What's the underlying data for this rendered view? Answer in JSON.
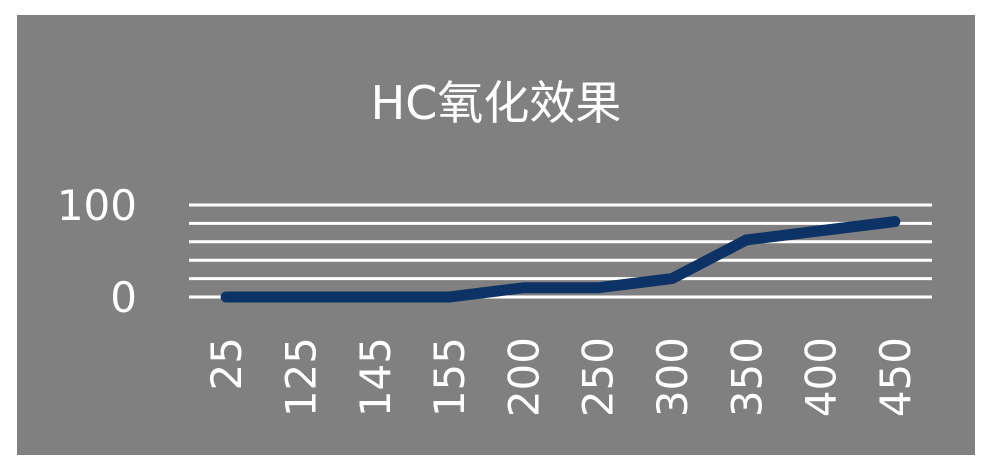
{
  "chart_data": {
    "type": "line",
    "title": "HC氧化效果",
    "categories": [
      "25",
      "125",
      "145",
      "155",
      "200",
      "250",
      "300",
      "350",
      "400",
      "450"
    ],
    "series": [
      {
        "values": [
          0,
          0,
          0,
          0,
          10,
          10,
          20,
          62,
          72,
          82
        ]
      }
    ],
    "y_tick_labels": [
      "0",
      "100"
    ],
    "ylim": [
      0,
      100
    ],
    "grid": true,
    "legend": "none",
    "colors": {
      "background": "#808080",
      "line": "#0d3366",
      "text": "#ffffff",
      "grid": "#ffffff"
    }
  }
}
